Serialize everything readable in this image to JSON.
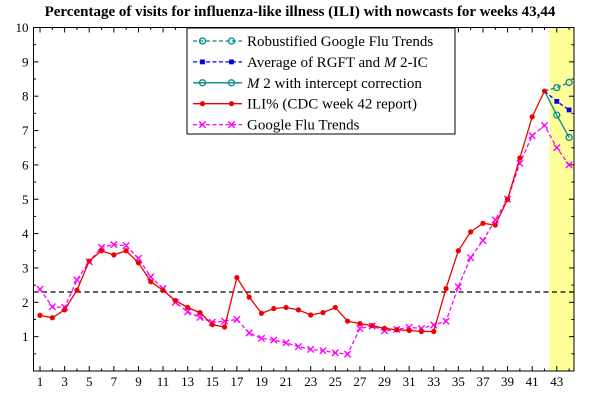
{
  "chart_data": {
    "type": "line",
    "title": "Percentage of visits for influenza-like illness (ILI) with nowcasts for weeks 43,44",
    "xlabel": "",
    "ylabel": "",
    "xlim": [
      0.47,
      44.4
    ],
    "ylim": [
      0,
      10
    ],
    "grid": "off",
    "legend_position": "top-center-inside",
    "axis_color": "#000000",
    "x_major_ticks": [
      1,
      3,
      5,
      7,
      9,
      11,
      13,
      15,
      17,
      19,
      21,
      23,
      25,
      27,
      29,
      31,
      33,
      35,
      37,
      39,
      41,
      43
    ],
    "x_minor_ticks": [
      2,
      4,
      6,
      8,
      10,
      12,
      14,
      16,
      18,
      20,
      22,
      24,
      26,
      28,
      30,
      32,
      34,
      36,
      38,
      40,
      42,
      44
    ],
    "y_major_ticks": [
      1,
      2,
      3,
      4,
      5,
      6,
      7,
      8,
      9,
      10
    ],
    "y_minor_ticks": [
      0.5,
      1.5,
      2.5,
      3.5,
      4.5,
      5.5,
      6.5,
      7.5,
      8.5,
      9.5
    ],
    "threshold_line": {
      "value": 2.3,
      "color": "#000000",
      "style": "dashed"
    },
    "nowcast_band": {
      "x_start": 42.4,
      "x_end": 44.4,
      "color": "#FFFF99"
    },
    "series": [
      {
        "name": "Google Flu Trends",
        "slug": "gft",
        "color": "#FF00FF",
        "line": "dashed",
        "marker": "x",
        "marker_skip_first": false,
        "x": [
          1,
          2,
          3,
          4,
          5,
          6,
          7,
          8,
          9,
          10,
          11,
          12,
          13,
          14,
          15,
          16,
          17,
          18,
          19,
          20,
          21,
          22,
          23,
          24,
          25,
          26,
          27,
          28,
          29,
          30,
          31,
          32,
          33,
          34,
          35,
          36,
          37,
          38,
          39,
          40,
          41,
          42,
          43,
          44
        ],
        "values": [
          2.38,
          1.87,
          1.85,
          2.65,
          3.18,
          3.6,
          3.68,
          3.65,
          3.28,
          2.74,
          2.4,
          2.0,
          1.72,
          1.56,
          1.42,
          1.45,
          1.5,
          1.11,
          0.95,
          0.9,
          0.82,
          0.71,
          0.63,
          0.59,
          0.53,
          0.49,
          1.24,
          1.31,
          1.17,
          1.21,
          1.27,
          1.24,
          1.34,
          1.45,
          2.45,
          3.3,
          3.8,
          4.4,
          5.0,
          6.05,
          6.85,
          7.15,
          6.5,
          6.0
        ],
        "label_parts": [
          {
            "text": "Google Flu Trends",
            "italic": false
          }
        ]
      },
      {
        "name": "M 2 with intercept correction",
        "slug": "m2ic",
        "color": "#008B8B",
        "line": "solid",
        "marker": "circle-open",
        "marker_skip_first": true,
        "x": [
          42,
          43,
          44
        ],
        "values": [
          8.15,
          7.45,
          6.8
        ],
        "label_parts": [
          {
            "text": "M",
            "italic": true
          },
          {
            "text": " 2 with intercept correction",
            "italic": false
          }
        ]
      },
      {
        "name": "Average of RGFT and M 2-IC",
        "slug": "avg-rgft-m2ic",
        "color": "#0000E8",
        "line": "dashed",
        "marker": "square-filled",
        "marker_skip_first": true,
        "x": [
          42,
          43,
          44
        ],
        "values": [
          8.15,
          7.85,
          7.6
        ],
        "label_parts": [
          {
            "text": "Average of RGFT and ",
            "italic": false
          },
          {
            "text": "M",
            "italic": true
          },
          {
            "text": " 2-IC",
            "italic": false
          }
        ]
      },
      {
        "name": "Robustified Google Flu Trends",
        "slug": "rgft",
        "color": "#008B8B",
        "line": "dashed",
        "marker": "circle-open",
        "marker_skip_first": true,
        "x": [
          42,
          43,
          44
        ],
        "values": [
          8.15,
          8.25,
          8.4
        ],
        "label_parts": [
          {
            "text": "Robustified Google Flu Trends",
            "italic": false
          }
        ]
      },
      {
        "name": "ILI% (CDC week 42 report)",
        "slug": "ili-cdc",
        "color": "#EE0000",
        "line": "solid",
        "marker": "circle-filled",
        "marker_skip_first": false,
        "x": [
          1,
          2,
          3,
          4,
          5,
          6,
          7,
          8,
          9,
          10,
          11,
          12,
          13,
          14,
          15,
          16,
          17,
          18,
          19,
          20,
          21,
          22,
          23,
          24,
          25,
          26,
          27,
          28,
          29,
          30,
          31,
          32,
          33,
          34,
          35,
          36,
          37,
          38,
          39,
          40,
          41,
          42
        ],
        "values": [
          1.62,
          1.55,
          1.78,
          2.35,
          3.2,
          3.5,
          3.38,
          3.5,
          3.15,
          2.6,
          2.35,
          2.05,
          1.85,
          1.7,
          1.35,
          1.28,
          2.72,
          2.15,
          1.68,
          1.82,
          1.85,
          1.78,
          1.63,
          1.7,
          1.85,
          1.45,
          1.38,
          1.32,
          1.24,
          1.2,
          1.18,
          1.15,
          1.15,
          2.4,
          3.5,
          4.05,
          4.3,
          4.25,
          5.0,
          6.2,
          7.4,
          8.15
        ],
        "label_parts": [
          {
            "text": "ILI% (CDC week 42 report)",
            "italic": false
          }
        ]
      }
    ],
    "legend_order": [
      "rgft",
      "avg-rgft-m2ic",
      "m2ic",
      "ili-cdc",
      "gft"
    ]
  }
}
